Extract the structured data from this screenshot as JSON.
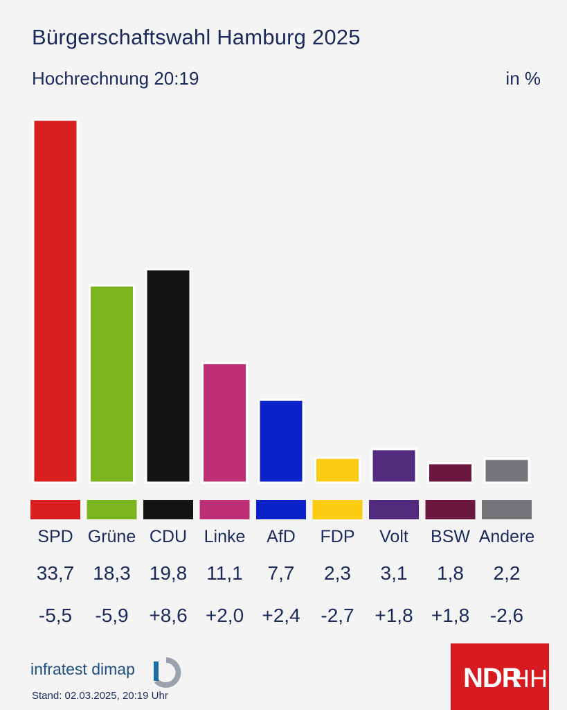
{
  "chart_data": {
    "type": "bar",
    "title": "Bürgerschaftswahl Hamburg 2025",
    "subtitle": "Hochrechnung 20:19",
    "unit_label": "in %",
    "categories": [
      "SPD",
      "Grüne",
      "CDU",
      "Linke",
      "AfD",
      "FDP",
      "Volt",
      "BSW",
      "Andere"
    ],
    "values": [
      33.7,
      18.3,
      19.8,
      11.1,
      7.7,
      2.3,
      3.1,
      1.8,
      2.2
    ],
    "value_labels": [
      "33,7",
      "18,3",
      "19,8",
      "11,1",
      "7,7",
      "2,3",
      "3,1",
      "1,8",
      "2,2"
    ],
    "change_labels": [
      "-5,5",
      "-5,9",
      "+8,6",
      "+2,0",
      "+2,4",
      "-2,7",
      "+1,8",
      "+1,8",
      "-2,6"
    ],
    "colors": [
      "#d81e1e",
      "#7ab51d",
      "#141414",
      "#be3075",
      "#0a22c8",
      "#fccc12",
      "#522a7e",
      "#6b1740",
      "#747579"
    ],
    "ylim": [
      0,
      34
    ]
  },
  "footer": {
    "source_name": "infratest",
    "source_name2": "dimap",
    "stand": "Stand:  02.03.2025, 20:19 Uhr",
    "broadcaster": "NDR",
    "region": "HH"
  }
}
